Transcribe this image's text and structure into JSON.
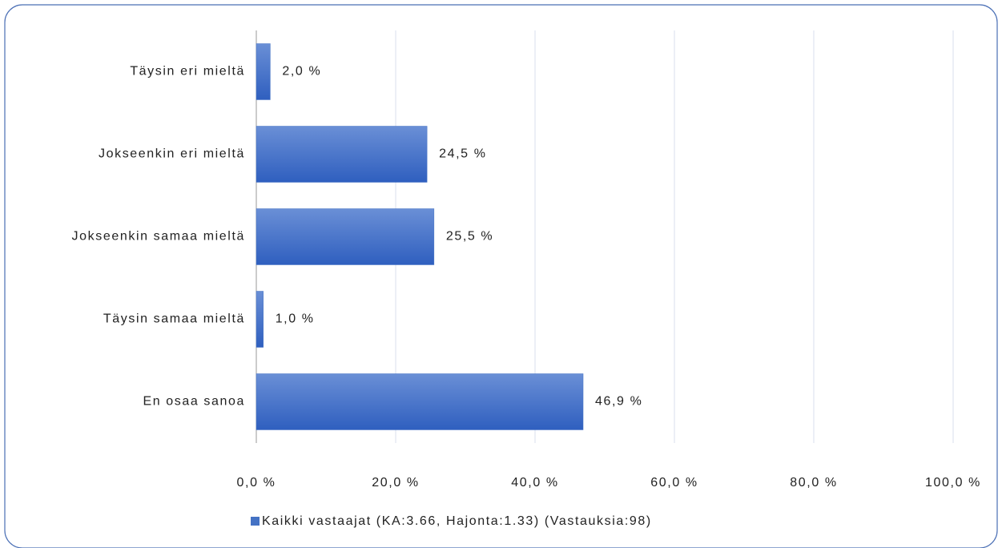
{
  "chart_data": {
    "type": "bar",
    "orientation": "horizontal",
    "categories": [
      "Täysin eri mieltä",
      "Jokseenkin eri mieltä",
      "Jokseenkin samaa mieltä",
      "Täysin samaa mieltä",
      "En osaa sanoa"
    ],
    "series": [
      {
        "name": "Kaikki vastaajat (KA:3.66, Hajonta:1.33) (Vastauksia:98)",
        "color": "#4472c4",
        "values": [
          2.0,
          24.5,
          25.5,
          1.0,
          46.9
        ],
        "value_labels": [
          "2,0 %",
          "24,5 %",
          "25,5 %",
          "1,0 %",
          "46,9 %"
        ]
      }
    ],
    "xlim": [
      0,
      100
    ],
    "xticks": [
      {
        "value": 0,
        "label": "0,0 %"
      },
      {
        "value": 20,
        "label": "20,0 %"
      },
      {
        "value": 40,
        "label": "40,0 %"
      },
      {
        "value": 60,
        "label": "60,0 %"
      },
      {
        "value": 80,
        "label": "80,0 %"
      },
      {
        "value": 100,
        "label": "100,0 %"
      }
    ],
    "grid": true,
    "legend": "bottom"
  }
}
